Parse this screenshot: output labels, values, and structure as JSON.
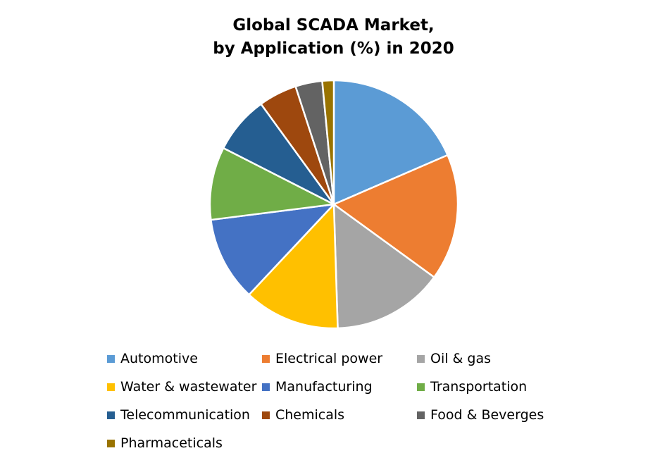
{
  "chart_data": {
    "type": "pie",
    "title_lines": [
      "Global SCADA Market,",
      "by Application (%) in 2020"
    ],
    "legend_position": "bottom",
    "slices": [
      {
        "label": "Automotive",
        "value": 18.5,
        "color": "#5B9BD5"
      },
      {
        "label": "Electrical power",
        "value": 16.5,
        "color": "#ED7D31"
      },
      {
        "label": "Oil & gas",
        "value": 14.5,
        "color": "#A5A5A5"
      },
      {
        "label": "Water & wastewater",
        "value": 12.5,
        "color": "#FFC000"
      },
      {
        "label": "Manufacturing",
        "value": 11,
        "color": "#4472C4"
      },
      {
        "label": "Transportation",
        "value": 9.5,
        "color": "#70AD47"
      },
      {
        "label": "Telecommunication",
        "value": 7.5,
        "color": "#255E91"
      },
      {
        "label": "Chemicals",
        "value": 5,
        "color": "#9E480E"
      },
      {
        "label": "Food & Beverges",
        "value": 3.5,
        "color": "#636363"
      },
      {
        "label": "Pharmaceticals",
        "value": 1.5,
        "color": "#997300"
      }
    ]
  }
}
